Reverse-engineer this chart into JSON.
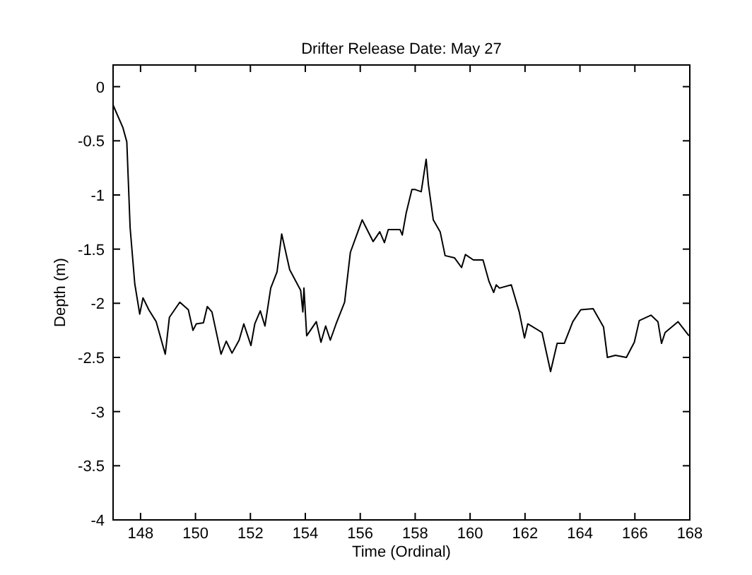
{
  "chart_data": {
    "type": "line",
    "title": "Drifter Release Date: May 27",
    "xlabel": "Time (Ordinal)",
    "ylabel": "Depth (m)",
    "xlim": [
      147,
      168
    ],
    "xticks": [
      148,
      150,
      152,
      154,
      156,
      158,
      160,
      162,
      164,
      166,
      168
    ],
    "ylim": [
      -4,
      0.2
    ],
    "yticks": [
      0,
      -0.5,
      -1,
      -1.5,
      -2,
      -2.5,
      -3,
      -3.5,
      -4
    ],
    "series": [
      {
        "color": "#000000",
        "x": [
          147.0,
          147.36,
          147.5,
          147.62,
          147.79,
          147.97,
          148.09,
          148.3,
          148.57,
          148.9,
          149.05,
          149.43,
          149.74,
          149.91,
          150.03,
          150.29,
          150.43,
          150.6,
          150.93,
          151.12,
          151.33,
          151.59,
          151.76,
          152.02,
          152.16,
          152.36,
          152.53,
          152.74,
          152.97,
          153.14,
          153.43,
          153.83,
          153.91,
          153.95,
          154.05,
          154.4,
          154.57,
          154.74,
          154.91,
          155.12,
          155.43,
          155.64,
          156.07,
          156.47,
          156.71,
          156.88,
          157.02,
          157.45,
          157.53,
          157.67,
          157.88,
          158.0,
          158.22,
          158.4,
          158.48,
          158.66,
          158.91,
          159.09,
          159.43,
          159.69,
          159.83,
          160.12,
          160.47,
          160.69,
          160.86,
          160.95,
          161.07,
          161.5,
          161.79,
          161.98,
          162.1,
          162.62,
          162.93,
          163.17,
          163.43,
          163.74,
          164.03,
          164.48,
          164.86,
          165.0,
          165.29,
          165.69,
          165.98,
          166.16,
          166.59,
          166.84,
          166.97,
          167.1,
          167.57,
          167.97
        ],
        "values": [
          -0.17,
          -0.38,
          -0.51,
          -1.3,
          -1.82,
          -2.1,
          -1.95,
          -2.06,
          -2.17,
          -2.47,
          -2.13,
          -1.99,
          -2.06,
          -2.25,
          -2.19,
          -2.18,
          -2.03,
          -2.08,
          -2.47,
          -2.35,
          -2.46,
          -2.34,
          -2.19,
          -2.39,
          -2.19,
          -2.07,
          -2.21,
          -1.86,
          -1.71,
          -1.36,
          -1.69,
          -1.88,
          -2.08,
          -1.86,
          -2.3,
          -2.17,
          -2.36,
          -2.21,
          -2.34,
          -2.19,
          -1.99,
          -1.53,
          -1.23,
          -1.43,
          -1.34,
          -1.44,
          -1.32,
          -1.32,
          -1.37,
          -1.17,
          -0.95,
          -0.95,
          -0.97,
          -0.67,
          -0.9,
          -1.23,
          -1.34,
          -1.56,
          -1.58,
          -1.67,
          -1.55,
          -1.6,
          -1.6,
          -1.8,
          -1.9,
          -1.83,
          -1.86,
          -1.83,
          -2.08,
          -2.32,
          -2.19,
          -2.27,
          -2.63,
          -2.37,
          -2.37,
          -2.17,
          -2.06,
          -2.05,
          -2.22,
          -2.5,
          -2.48,
          -2.5,
          -2.36,
          -2.16,
          -2.11,
          -2.17,
          -2.37,
          -2.27,
          -2.17,
          -2.3
        ]
      }
    ]
  }
}
